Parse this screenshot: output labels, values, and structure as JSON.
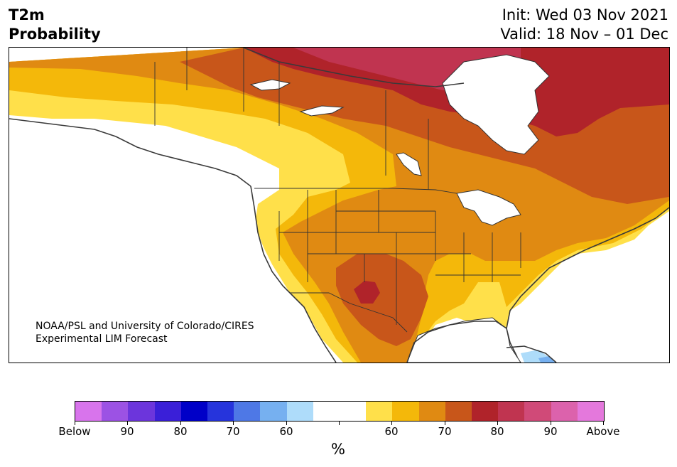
{
  "header": {
    "title_line1": "T2m",
    "title_line2": "Probability",
    "init_text": "Init: Wed 03 Nov 2021",
    "valid_text": "Valid: 18 Nov – 01 Dec"
  },
  "map": {
    "credit_line1": "NOAA/PSL and University of Colorado/CIRES",
    "credit_line2": "Experimental LIM Forecast"
  },
  "colorbar": {
    "unit": "%",
    "colors": [
      "#d874ec",
      "#9c52e4",
      "#6c35dc",
      "#3a1fd8",
      "#0000c8",
      "#2634dc",
      "#4e78e6",
      "#76b0f0",
      "#aedcfa",
      "#ffffff",
      "#ffffff",
      "#ffe04a",
      "#f4b80a",
      "#e08a12",
      "#c8561a",
      "#b0232a",
      "#c03450",
      "#d04a78",
      "#dc62ac",
      "#e478dc"
    ],
    "tick_labels": [
      "Below",
      "90",
      "80",
      "70",
      "60",
      "",
      "60",
      "70",
      "80",
      "90",
      "Above"
    ]
  },
  "legend_colors": {
    "p55_60": "#ffe04a",
    "p60_65": "#f4b80a",
    "p65_70": "#e08a12",
    "p70_75": "#c8561a",
    "p75_80": "#b0232a",
    "p80_85": "#c03450",
    "below_55_60": "#aedcfa",
    "below_60_65": "#76b0f0"
  }
}
